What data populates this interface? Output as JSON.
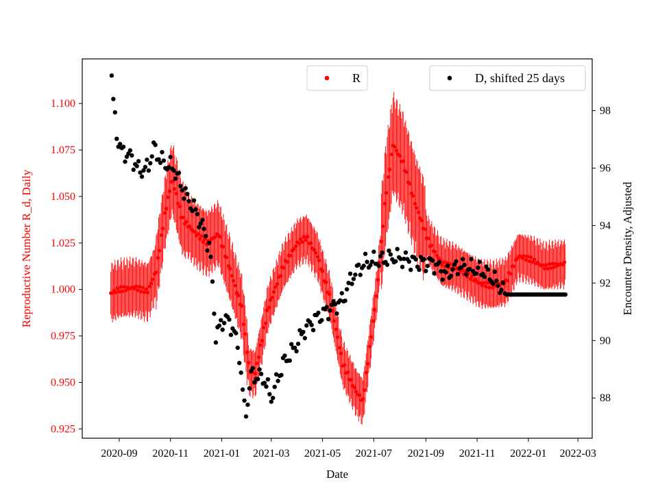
{
  "chart_data": {
    "type": "scatter",
    "xlabel": "Date",
    "y_left_label": "Reproductive Number R_d, Daily",
    "y_right_label": "Encounter Density, Adjusted",
    "x_ticks": [
      "2020-09",
      "2020-11",
      "2021-01",
      "2021-03",
      "2021-05",
      "2021-07",
      "2021-09",
      "2021-11",
      "2022-01",
      "2022-03"
    ],
    "x_range": [
      "2020-07-19",
      "2022-03-18"
    ],
    "y_left_ticks": [
      "0.925",
      "0.950",
      "0.975",
      "1.000",
      "1.025",
      "1.050",
      "1.075",
      "1.100"
    ],
    "y_left_range": [
      0.92,
      1.124
    ],
    "y_right_ticks": [
      "88",
      "90",
      "92",
      "94",
      "96",
      "98"
    ],
    "y_right_range": [
      86.6,
      99.8
    ],
    "grid": false,
    "colors": {
      "r_series": "#ff0000",
      "d_series": "#000000"
    },
    "series": [
      {
        "name": "R",
        "axis": "left",
        "color": "#ff0000",
        "error_bars": true,
        "knots": [
          [
            "2020-08-22",
            0.998
          ],
          [
            "2020-09-01",
            1.0
          ],
          [
            "2020-09-20",
            1.001
          ],
          [
            "2020-10-05",
            0.999
          ],
          [
            "2020-10-15",
            1.01
          ],
          [
            "2020-10-25",
            1.04
          ],
          [
            "2020-11-03",
            1.06
          ],
          [
            "2020-11-15",
            1.038
          ],
          [
            "2020-12-01",
            1.03
          ],
          [
            "2020-12-15",
            1.025
          ],
          [
            "2020-12-28",
            1.03
          ],
          [
            "2021-01-10",
            1.012
          ],
          [
            "2021-01-25",
            0.99
          ],
          [
            "2021-02-03",
            0.956
          ],
          [
            "2021-02-10",
            0.955
          ],
          [
            "2021-02-25",
            0.99
          ],
          [
            "2021-03-15",
            1.012
          ],
          [
            "2021-04-01",
            1.025
          ],
          [
            "2021-04-12",
            1.028
          ],
          [
            "2021-04-25",
            1.018
          ],
          [
            "2021-05-10",
            0.995
          ],
          [
            "2021-05-25",
            0.96
          ],
          [
            "2021-06-10",
            0.945
          ],
          [
            "2021-06-18",
            0.94
          ],
          [
            "2021-07-05",
            1.0
          ],
          [
            "2021-07-15",
            1.05
          ],
          [
            "2021-07-24",
            1.078
          ],
          [
            "2021-08-05",
            1.068
          ],
          [
            "2021-08-20",
            1.045
          ],
          [
            "2021-09-05",
            1.025
          ],
          [
            "2021-09-20",
            1.014
          ],
          [
            "2021-10-05",
            1.012
          ],
          [
            "2021-10-20",
            1.008
          ],
          [
            "2021-11-05",
            1.003
          ],
          [
            "2021-11-20",
            1.002
          ],
          [
            "2021-12-05",
            1.004
          ],
          [
            "2021-12-20",
            1.018
          ],
          [
            "2022-01-05",
            1.016
          ],
          [
            "2022-01-20",
            1.012
          ],
          [
            "2022-02-14",
            1.014
          ]
        ]
      },
      {
        "name": "D, shifted 25 days",
        "axis": "right",
        "color": "#000000",
        "knots": [
          [
            "2020-08-23",
            99.1
          ],
          [
            "2020-08-25",
            98.3
          ],
          [
            "2020-08-29",
            97.2
          ],
          [
            "2020-09-03",
            96.6
          ],
          [
            "2020-09-15",
            96.4
          ],
          [
            "2020-09-25",
            95.9
          ],
          [
            "2020-10-05",
            96.0
          ],
          [
            "2020-10-12",
            96.7
          ],
          [
            "2020-10-20",
            96.3
          ],
          [
            "2020-10-28",
            96.1
          ],
          [
            "2020-11-05",
            96.0
          ],
          [
            "2020-11-12",
            95.5
          ],
          [
            "2020-11-20",
            95.0
          ],
          [
            "2020-12-01",
            94.5
          ],
          [
            "2020-12-10",
            93.9
          ],
          [
            "2020-12-18",
            93.2
          ],
          [
            "2020-12-25",
            90.2
          ],
          [
            "2021-01-05",
            90.8
          ],
          [
            "2021-01-15",
            90.4
          ],
          [
            "2021-01-22",
            89.5
          ],
          [
            "2021-01-29",
            87.3
          ],
          [
            "2021-02-05",
            88.8
          ],
          [
            "2021-02-20",
            88.7
          ],
          [
            "2021-03-01",
            88.0
          ],
          [
            "2021-03-15",
            89.2
          ],
          [
            "2021-03-28",
            89.7
          ],
          [
            "2021-04-10",
            90.4
          ],
          [
            "2021-04-25",
            90.8
          ],
          [
            "2021-05-10",
            91.1
          ],
          [
            "2021-05-25",
            91.4
          ],
          [
            "2021-06-05",
            92.2
          ],
          [
            "2021-06-20",
            92.7
          ],
          [
            "2021-07-10",
            92.8
          ],
          [
            "2021-07-25",
            92.9
          ],
          [
            "2021-08-10",
            92.8
          ],
          [
            "2021-08-25",
            92.7
          ],
          [
            "2021-09-10",
            92.7
          ],
          [
            "2021-09-25",
            92.3
          ],
          [
            "2021-10-10",
            92.6
          ],
          [
            "2021-10-25",
            92.5
          ],
          [
            "2021-11-10",
            92.4
          ],
          [
            "2021-11-25",
            92.0
          ],
          [
            "2021-12-05",
            91.6
          ],
          [
            "2022-01-01",
            91.6
          ],
          [
            "2022-02-14",
            91.6
          ]
        ]
      }
    ],
    "legend": [
      {
        "label": "R",
        "placement": "top-center"
      },
      {
        "label": "D, shifted 25 days",
        "placement": "top-right"
      }
    ]
  }
}
